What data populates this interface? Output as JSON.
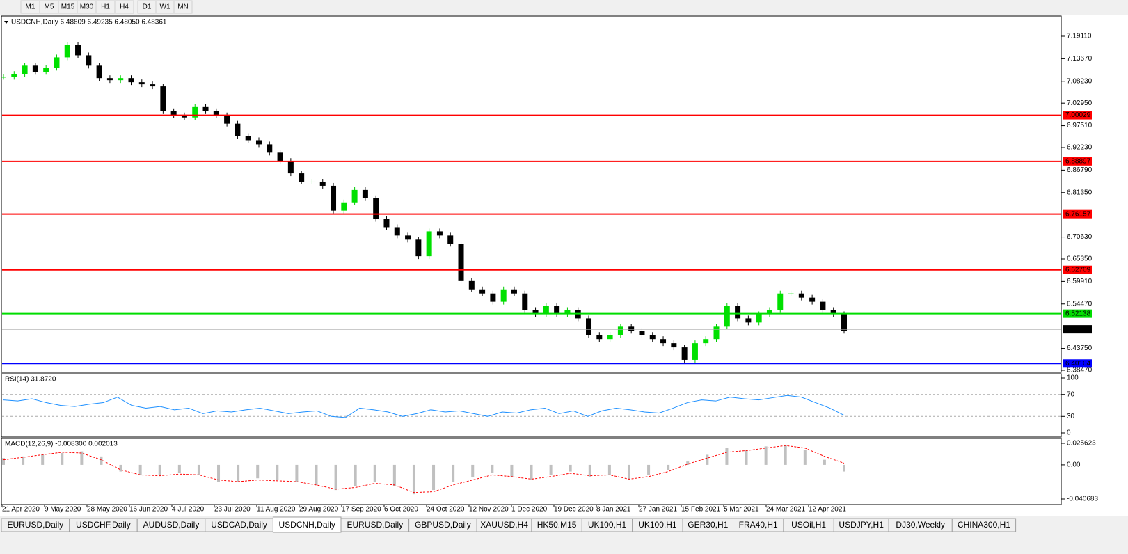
{
  "toolbar": {
    "timeframes": [
      "M1",
      "M5",
      "M15",
      "M30",
      "H1",
      "H4",
      "D1",
      "W1",
      "MN"
    ]
  },
  "chart": {
    "header": "USDCNH,Daily  6.48809 6.49235 6.48050 6.48361",
    "price_ticks": [
      {
        "value": 7.1911,
        "label": "7.19110"
      },
      {
        "value": 7.1367,
        "label": "7.13670"
      },
      {
        "value": 7.0823,
        "label": "7.08230"
      },
      {
        "value": 7.0295,
        "label": "7.02950"
      },
      {
        "value": 6.9751,
        "label": "6.97510"
      },
      {
        "value": 6.9223,
        "label": "6.92230"
      },
      {
        "value": 6.8679,
        "label": "6.86790"
      },
      {
        "value": 6.8135,
        "label": "6.81350"
      },
      {
        "value": 6.7063,
        "label": "6.70630"
      },
      {
        "value": 6.6535,
        "label": "6.65350"
      },
      {
        "value": 6.5991,
        "label": "6.59910"
      },
      {
        "value": 6.5447,
        "label": "6.54470"
      },
      {
        "value": 6.4375,
        "label": "6.43750"
      },
      {
        "value": 6.3847,
        "label": "6.38470"
      }
    ],
    "levels": [
      {
        "value": 7.00029,
        "label": "7.00029",
        "color": "#ff0000"
      },
      {
        "value": 6.88897,
        "label": "6.88897",
        "color": "#ff0000"
      },
      {
        "value": 6.76157,
        "label": "6.76157",
        "color": "#ff0000"
      },
      {
        "value": 6.62709,
        "label": "6.62709",
        "color": "#ff0000"
      },
      {
        "value": 6.52138,
        "label": "6.52138",
        "color": "#00dd00"
      },
      {
        "value": 6.40104,
        "label": "6.40104",
        "color": "#0000ff"
      }
    ],
    "current_price": {
      "value": 6.48361,
      "label": "6.48361"
    },
    "closes": [
      7.093,
      7.1,
      7.12,
      7.105,
      7.115,
      7.14,
      7.17,
      7.145,
      7.12,
      7.09,
      7.085,
      7.09,
      7.08,
      7.075,
      7.07,
      7.01,
      7.0,
      6.995,
      7.02,
      7.01,
      7.0,
      6.98,
      6.95,
      6.94,
      6.93,
      6.91,
      6.89,
      6.86,
      6.84,
      6.84,
      6.83,
      6.77,
      6.79,
      6.82,
      6.8,
      6.75,
      6.73,
      6.71,
      6.7,
      6.66,
      6.72,
      6.71,
      6.69,
      6.6,
      6.58,
      6.57,
      6.55,
      6.58,
      6.57,
      6.53,
      6.52,
      6.54,
      6.52,
      6.53,
      6.51,
      6.47,
      6.46,
      6.47,
      6.49,
      6.48,
      6.47,
      6.46,
      6.45,
      6.44,
      6.41,
      6.45,
      6.46,
      6.49,
      6.54,
      6.51,
      6.5,
      6.52,
      6.53,
      6.57,
      6.57,
      6.56,
      6.55,
      6.53,
      6.52,
      6.48
    ],
    "dates": [
      "21 Apr 2020",
      "9 May 2020",
      "28 May 2020",
      "16 Jun 2020",
      "4 Jul 2020",
      "23 Jul 2020",
      "11 Aug 2020",
      "29 Aug 2020",
      "17 Sep 2020",
      "6 Oct 2020",
      "24 Oct 2020",
      "12 Nov 2020",
      "1 Dec 2020",
      "19 Dec 2020",
      "8 Jan 2021",
      "27 Jan 2021",
      "15 Feb 2021",
      "5 Mar 2021",
      "24 Mar 2021",
      "12 Apr 2021"
    ]
  },
  "rsi": {
    "title": "RSI(14) 31.8720",
    "ticks": [
      100,
      70,
      30,
      0
    ],
    "levels": [
      70,
      30
    ],
    "values": [
      60,
      58,
      62,
      55,
      50,
      48,
      52,
      55,
      65,
      50,
      45,
      48,
      42,
      45,
      35,
      40,
      38,
      42,
      45,
      40,
      35,
      38,
      40,
      30,
      28,
      45,
      42,
      38,
      30,
      35,
      42,
      38,
      40,
      35,
      30,
      38,
      36,
      42,
      45,
      35,
      40,
      30,
      40,
      45,
      42,
      38,
      36,
      45,
      55,
      60,
      58,
      65,
      62,
      60,
      64,
      68,
      65,
      55,
      45,
      32
    ]
  },
  "macd": {
    "title": "MACD(12,26,9) -0.008300 0.002013",
    "ticks": [
      {
        "value": 0.025623,
        "label": "0.025623"
      },
      {
        "value": 0,
        "label": "0.00"
      },
      {
        "value": -0.040683,
        "label": "-0.040683"
      }
    ],
    "histogram": [
      0.008,
      0.01,
      0.012,
      0.014,
      0.016,
      0.01,
      -0.008,
      -0.012,
      -0.012,
      -0.01,
      -0.012,
      -0.02,
      -0.02,
      -0.016,
      -0.018,
      -0.02,
      -0.024,
      -0.03,
      -0.025,
      -0.02,
      -0.025,
      -0.035,
      -0.03,
      -0.02,
      -0.015,
      -0.01,
      -0.014,
      -0.018,
      -0.012,
      -0.008,
      -0.014,
      -0.012,
      -0.018,
      -0.012,
      -0.006,
      0.004,
      0.012,
      0.02,
      0.018,
      0.022,
      0.024,
      0.018,
      0.006,
      -0.008
    ],
    "signal": [
      0.006,
      0.009,
      0.012,
      0.015,
      0.014,
      0.006,
      -0.006,
      -0.012,
      -0.013,
      -0.011,
      -0.012,
      -0.018,
      -0.02,
      -0.018,
      -0.019,
      -0.02,
      -0.024,
      -0.029,
      -0.027,
      -0.022,
      -0.024,
      -0.033,
      -0.032,
      -0.024,
      -0.018,
      -0.012,
      -0.014,
      -0.017,
      -0.014,
      -0.01,
      -0.013,
      -0.012,
      -0.017,
      -0.014,
      -0.008,
      0.001,
      0.008,
      0.015,
      0.017,
      0.02,
      0.023,
      0.02,
      0.01,
      0.002
    ]
  },
  "tabs": {
    "items": [
      "EURUSD,Daily",
      "USDCHF,Daily",
      "AUDUSD,Daily",
      "USDCAD,Daily",
      "USDCNH,Daily",
      "EURUSD,Daily",
      "GBPUSD,Daily",
      "XAUUSD,H4",
      "HK50,M15",
      "UK100,H1",
      "UK100,H1",
      "GER30,H1",
      "FRA40,H1",
      "USOil,H1",
      "USDJPY,H1",
      "DJ30,Weekly",
      "CHINA300,H1"
    ],
    "active": 4
  }
}
